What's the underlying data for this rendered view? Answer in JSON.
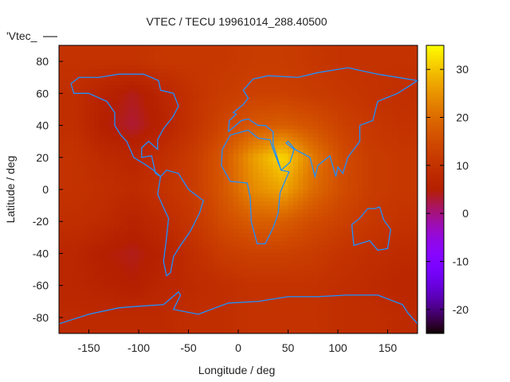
{
  "chart_data": {
    "type": "heatmap",
    "title": "VTEC / TECU 19961014_288.40500",
    "xlabel": "Longitude / deg",
    "ylabel": "Latitude / deg",
    "key_label": "'Vtec_",
    "xlim": [
      -180,
      180
    ],
    "ylim": [
      -90,
      90
    ],
    "xticks": [
      -150,
      -100,
      -50,
      0,
      50,
      100,
      150
    ],
    "yticks": [
      -80,
      -60,
      -40,
      -20,
      0,
      20,
      40,
      60,
      80
    ],
    "cbrange": [
      -25,
      35
    ],
    "cbticks": [
      -20,
      -10,
      0,
      10,
      20,
      30
    ],
    "grid_lon": [
      -165,
      -135,
      -105,
      -75,
      -45,
      -15,
      15,
      45,
      75,
      105,
      135,
      165
    ],
    "grid_lat": [
      80,
      60,
      40,
      20,
      0,
      -20,
      -40,
      -60,
      -80
    ],
    "values": [
      [
        10,
        10,
        10,
        11,
        11,
        11,
        12,
        12,
        11,
        10,
        10,
        10
      ],
      [
        9,
        6,
        4,
        7,
        10,
        12,
        13,
        13,
        12,
        11,
        10,
        9
      ],
      [
        9,
        5,
        3,
        6,
        10,
        14,
        17,
        18,
        16,
        13,
        11,
        10
      ],
      [
        10,
        8,
        7,
        9,
        12,
        17,
        26,
        32,
        22,
        15,
        12,
        11
      ],
      [
        10,
        9,
        8,
        10,
        12,
        17,
        24,
        27,
        20,
        15,
        12,
        11
      ],
      [
        9,
        8,
        6,
        8,
        11,
        15,
        18,
        18,
        15,
        13,
        11,
        10
      ],
      [
        7,
        5,
        4,
        6,
        9,
        12,
        13,
        13,
        12,
        10,
        9,
        8
      ],
      [
        7,
        6,
        5,
        7,
        8,
        9,
        10,
        10,
        10,
        9,
        8,
        7
      ],
      [
        8,
        8,
        8,
        8,
        9,
        9,
        10,
        10,
        10,
        9,
        9,
        8
      ]
    ],
    "coastline_color": "#1e90ff",
    "palette": "rgbformulae 7,5,15"
  }
}
